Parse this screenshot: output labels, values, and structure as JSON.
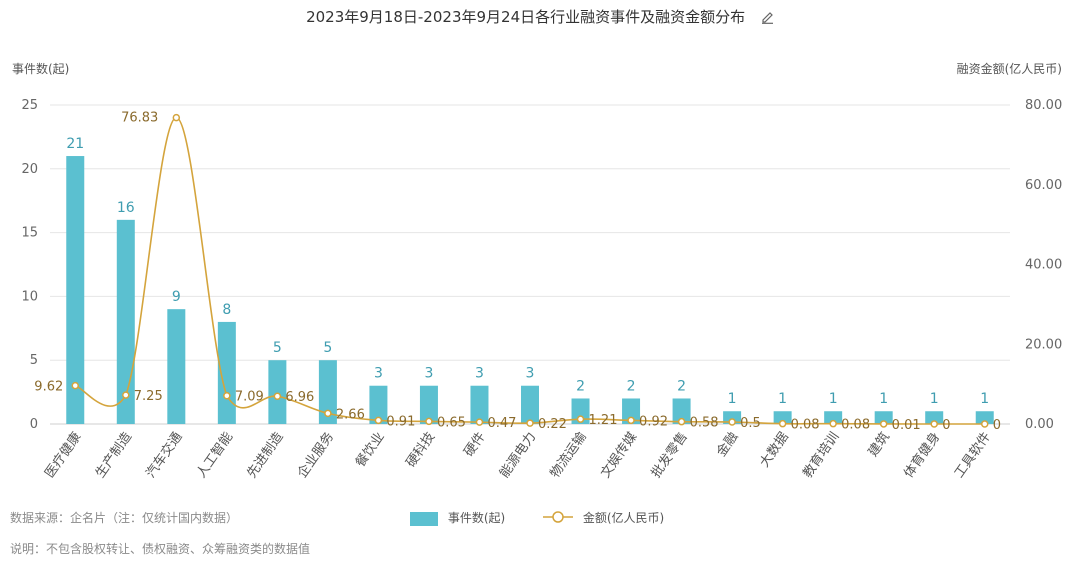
{
  "chart_data": {
    "type": "bar",
    "title": "2023年9月18日-2023年9月24日各行业融资事件及融资金额分布",
    "categories": [
      "医疗健康",
      "生产制造",
      "汽车交通",
      "人工智能",
      "先进制造",
      "企业服务",
      "餐饮业",
      "硬科技",
      "硬件",
      "能源电力",
      "物流运输",
      "文娱传媒",
      "批发零售",
      "金融",
      "大数据",
      "教育培训",
      "建筑",
      "体育健身",
      "工具软件"
    ],
    "series": [
      {
        "name": "事件数(起)",
        "type": "bar",
        "axis": "left",
        "color": "#5bc0d0",
        "values": [
          21,
          16,
          9,
          8,
          5,
          5,
          3,
          3,
          3,
          3,
          2,
          2,
          2,
          1,
          1,
          1,
          1,
          1,
          1
        ]
      },
      {
        "name": "金额(亿人民币)",
        "type": "line",
        "axis": "right",
        "color": "#d4a43c",
        "values": [
          9.62,
          7.25,
          76.83,
          7.09,
          6.96,
          2.66,
          0.91,
          0.65,
          0.47,
          0.22,
          1.21,
          0.92,
          0.58,
          0.5,
          0.08,
          0.08,
          0.01,
          0,
          0
        ]
      }
    ],
    "ylabel_left": "事件数(起)",
    "ylabel_right": "融资金额(亿人民币)",
    "ylim_left": [
      0,
      25
    ],
    "ylim_right": [
      0,
      80
    ],
    "yticks_left": [
      "0",
      "5",
      "10",
      "15",
      "20",
      "25"
    ],
    "yticks_right": [
      "0.00",
      "20.00",
      "40.00",
      "60.00",
      "80.00"
    ],
    "grid": true,
    "legend_position": "bottom"
  },
  "notes": {
    "source": "数据来源：企名片（注：仅统计国内数据）",
    "explanation": "说明：不包含股权转让、债权融资、众筹融资类的数据值"
  }
}
